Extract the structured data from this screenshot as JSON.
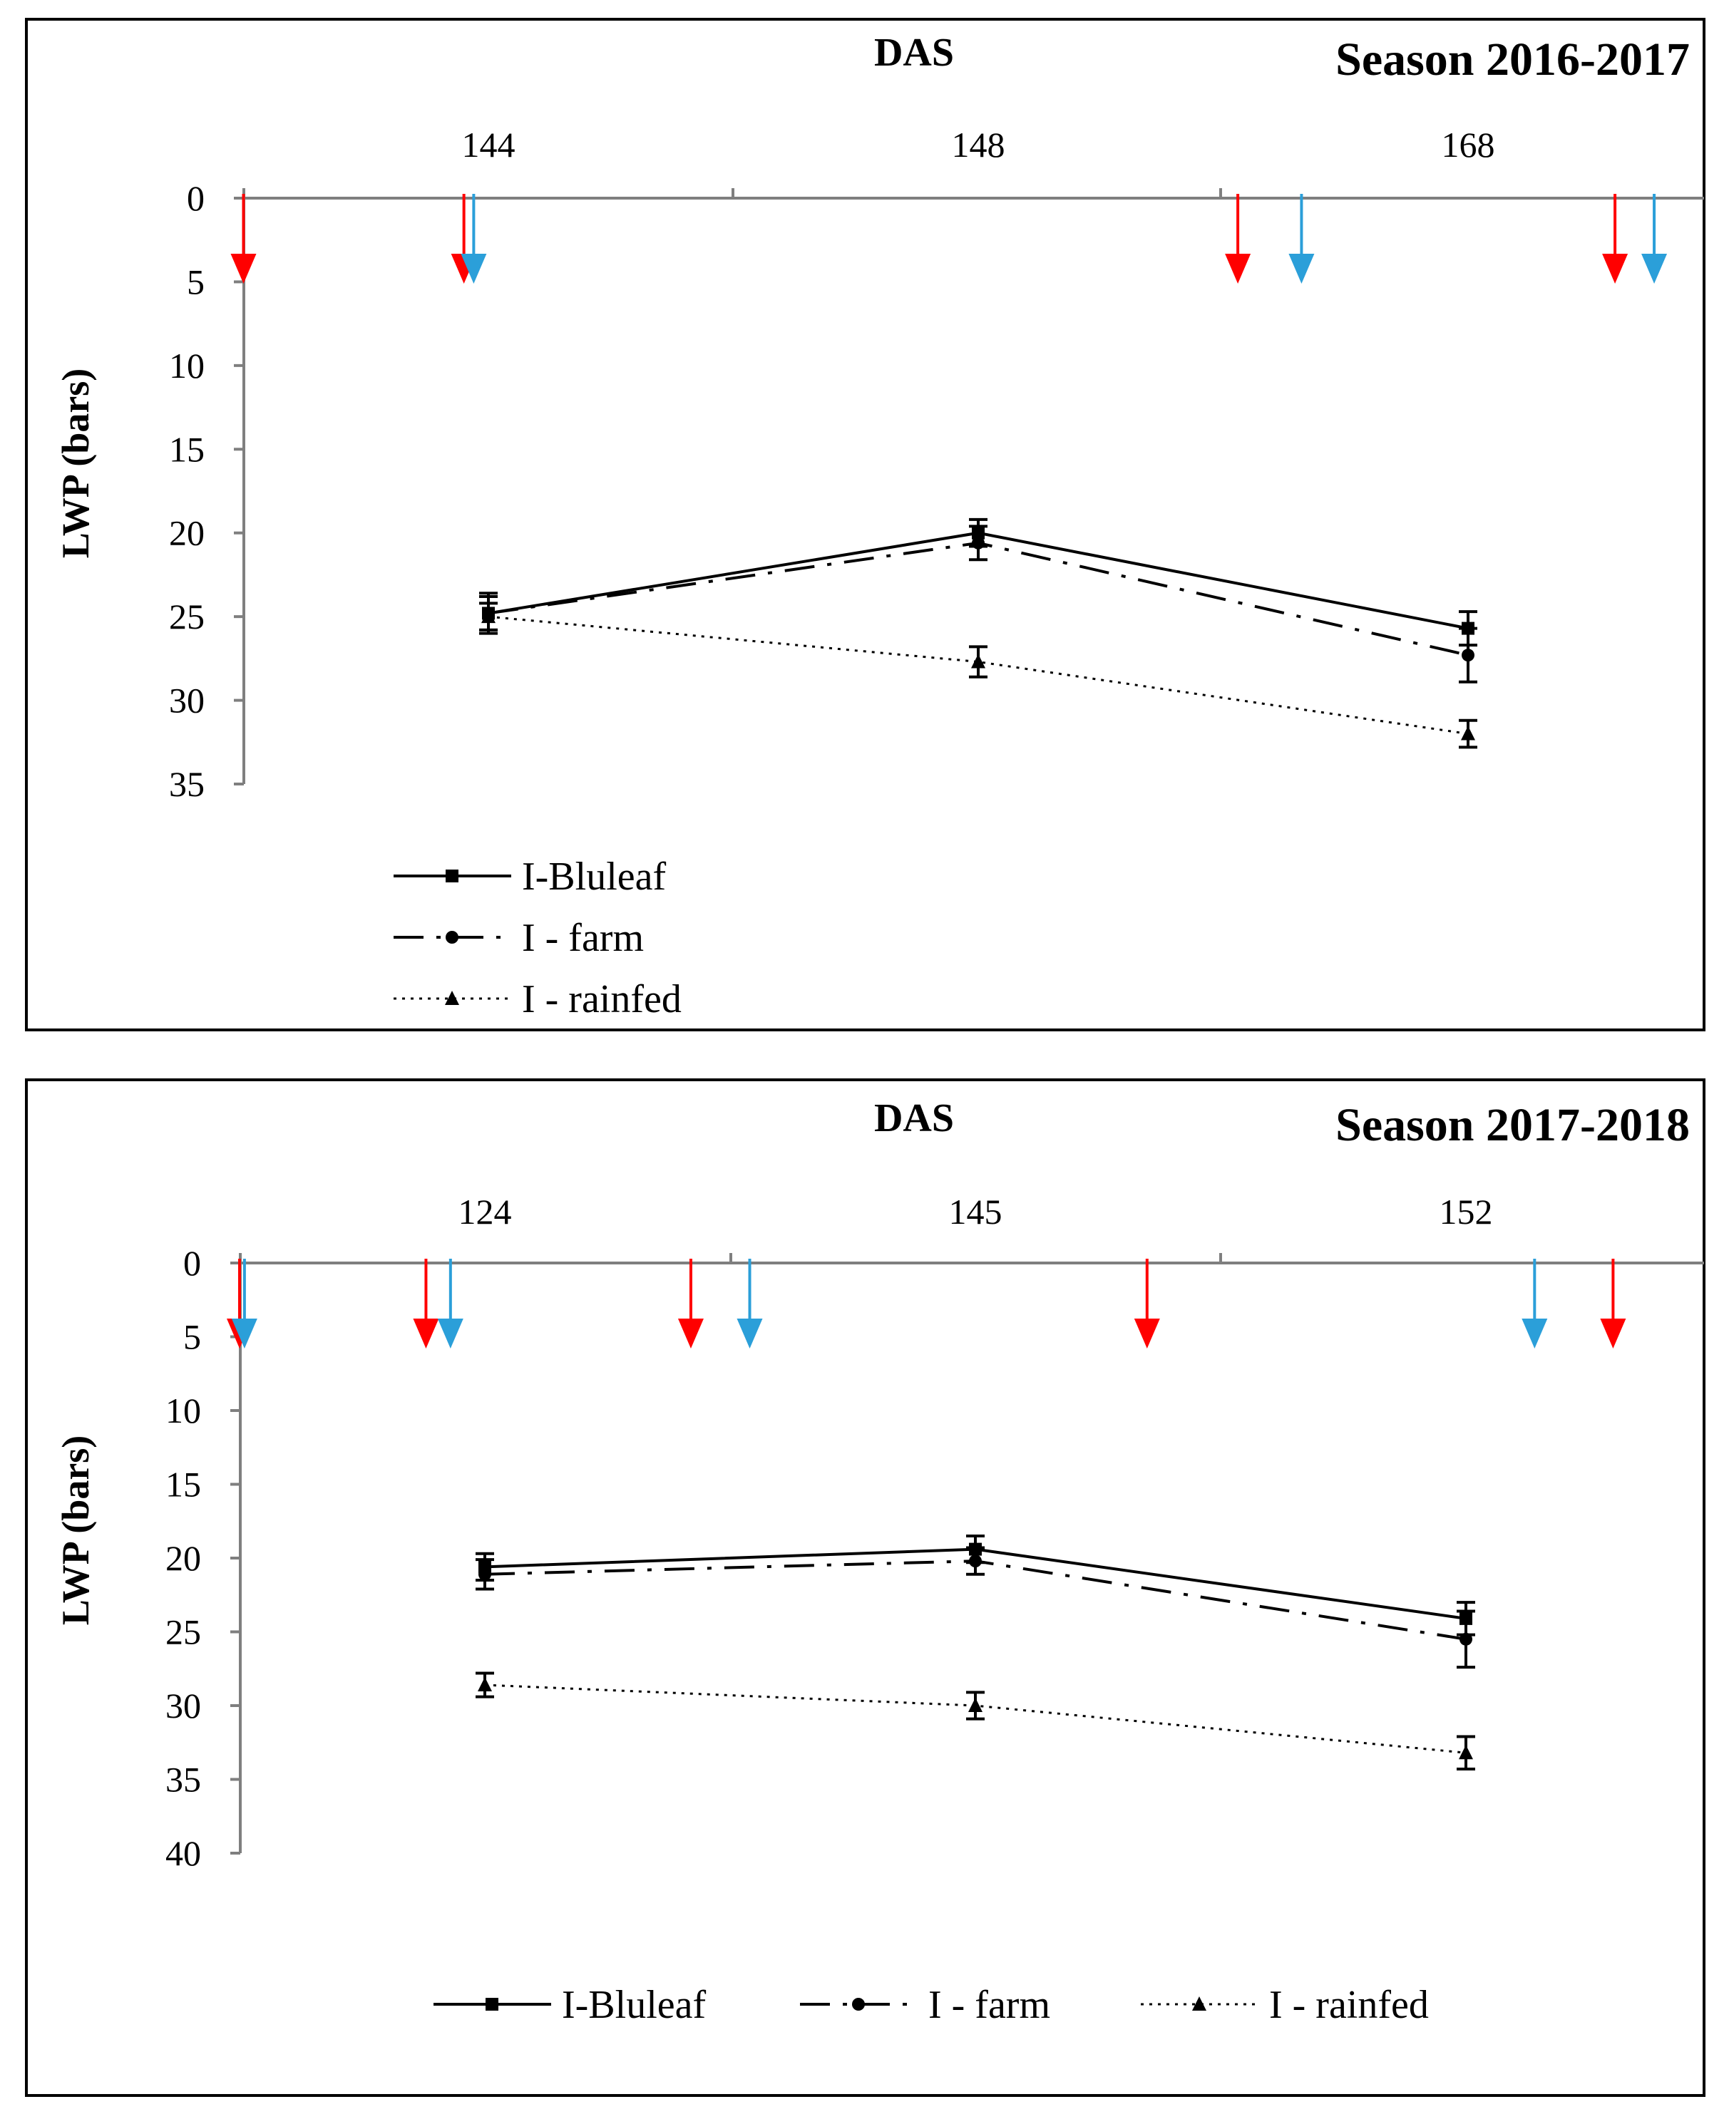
{
  "colors": {
    "red_arrow": "#ff0000",
    "blue_arrow": "#2b9fd9",
    "line": "#000000",
    "axis": "#7f7f7f",
    "frame": "#000000"
  },
  "chart_data": [
    {
      "type": "line",
      "title": "Season 2016-2017",
      "xlabel": "DAS",
      "ylabel": "LWP (bars)",
      "categories": [
        "144",
        "148",
        "168"
      ],
      "yticks": [
        "0",
        "5",
        "10",
        "15",
        "20",
        "25",
        "30",
        "35"
      ],
      "ylim": [
        0,
        35
      ],
      "y_axis_inverted": true,
      "grid": false,
      "legend_position": "bottom-left, stacked vertically",
      "series": [
        {
          "name": "I-Bluleaf",
          "style": "solid",
          "marker": "square",
          "values": [
            24.8,
            20.0,
            25.7
          ],
          "errors": [
            1.0,
            0.8,
            1.0
          ]
        },
        {
          "name": "I - farm",
          "style": "dash-dot",
          "marker": "circle",
          "values": [
            24.8,
            20.6,
            27.3
          ],
          "errors": [
            1.2,
            1.0,
            1.6
          ]
        },
        {
          "name": "I - rainfed",
          "style": "dotted",
          "marker": "triangle",
          "values": [
            25.0,
            27.7,
            32.0
          ],
          "errors": [
            0.8,
            0.9,
            0.8
          ]
        }
      ],
      "event_arrows": [
        {
          "color": "red",
          "x_cat": -0.5
        },
        {
          "color": "red",
          "x_cat": -0.05
        },
        {
          "color": "blue",
          "x_cat": -0.03
        },
        {
          "color": "red",
          "x_cat": 1.53
        },
        {
          "color": "blue",
          "x_cat": 1.66
        },
        {
          "color": "red",
          "x_cat": 2.3
        },
        {
          "color": "blue",
          "x_cat": 2.38
        }
      ]
    },
    {
      "type": "line",
      "title": "Season 2017-2018",
      "xlabel": "DAS",
      "ylabel": "LWP (bars)",
      "categories": [
        "124",
        "145",
        "152"
      ],
      "yticks": [
        "0",
        "5",
        "10",
        "15",
        "20",
        "25",
        "30",
        "35",
        "40"
      ],
      "ylim": [
        0,
        40
      ],
      "y_axis_inverted": true,
      "grid": false,
      "legend_position": "bottom, horizontal",
      "series": [
        {
          "name": "I-Bluleaf",
          "style": "solid",
          "marker": "square",
          "values": [
            20.6,
            19.4,
            24.1
          ],
          "errors": [
            0.9,
            0.9,
            1.1
          ]
        },
        {
          "name": "I - farm",
          "style": "dash-dot",
          "marker": "circle",
          "values": [
            21.1,
            20.2,
            25.5
          ],
          "errors": [
            1.0,
            0.9,
            1.9
          ]
        },
        {
          "name": "I - rainfed",
          "style": "dotted",
          "marker": "triangle",
          "values": [
            28.6,
            30.0,
            33.2
          ],
          "errors": [
            0.8,
            0.9,
            1.1
          ]
        }
      ],
      "event_arrows": [
        {
          "color": "red",
          "x_cat": -0.5
        },
        {
          "color": "blue",
          "x_cat": -0.49
        },
        {
          "color": "red",
          "x_cat": -0.12
        },
        {
          "color": "blue",
          "x_cat": -0.07
        },
        {
          "color": "red",
          "x_cat": 0.42
        },
        {
          "color": "blue",
          "x_cat": 0.54
        },
        {
          "color": "red",
          "x_cat": 1.35
        },
        {
          "color": "blue",
          "x_cat": 2.14
        },
        {
          "color": "red",
          "x_cat": 2.3
        }
      ]
    }
  ]
}
